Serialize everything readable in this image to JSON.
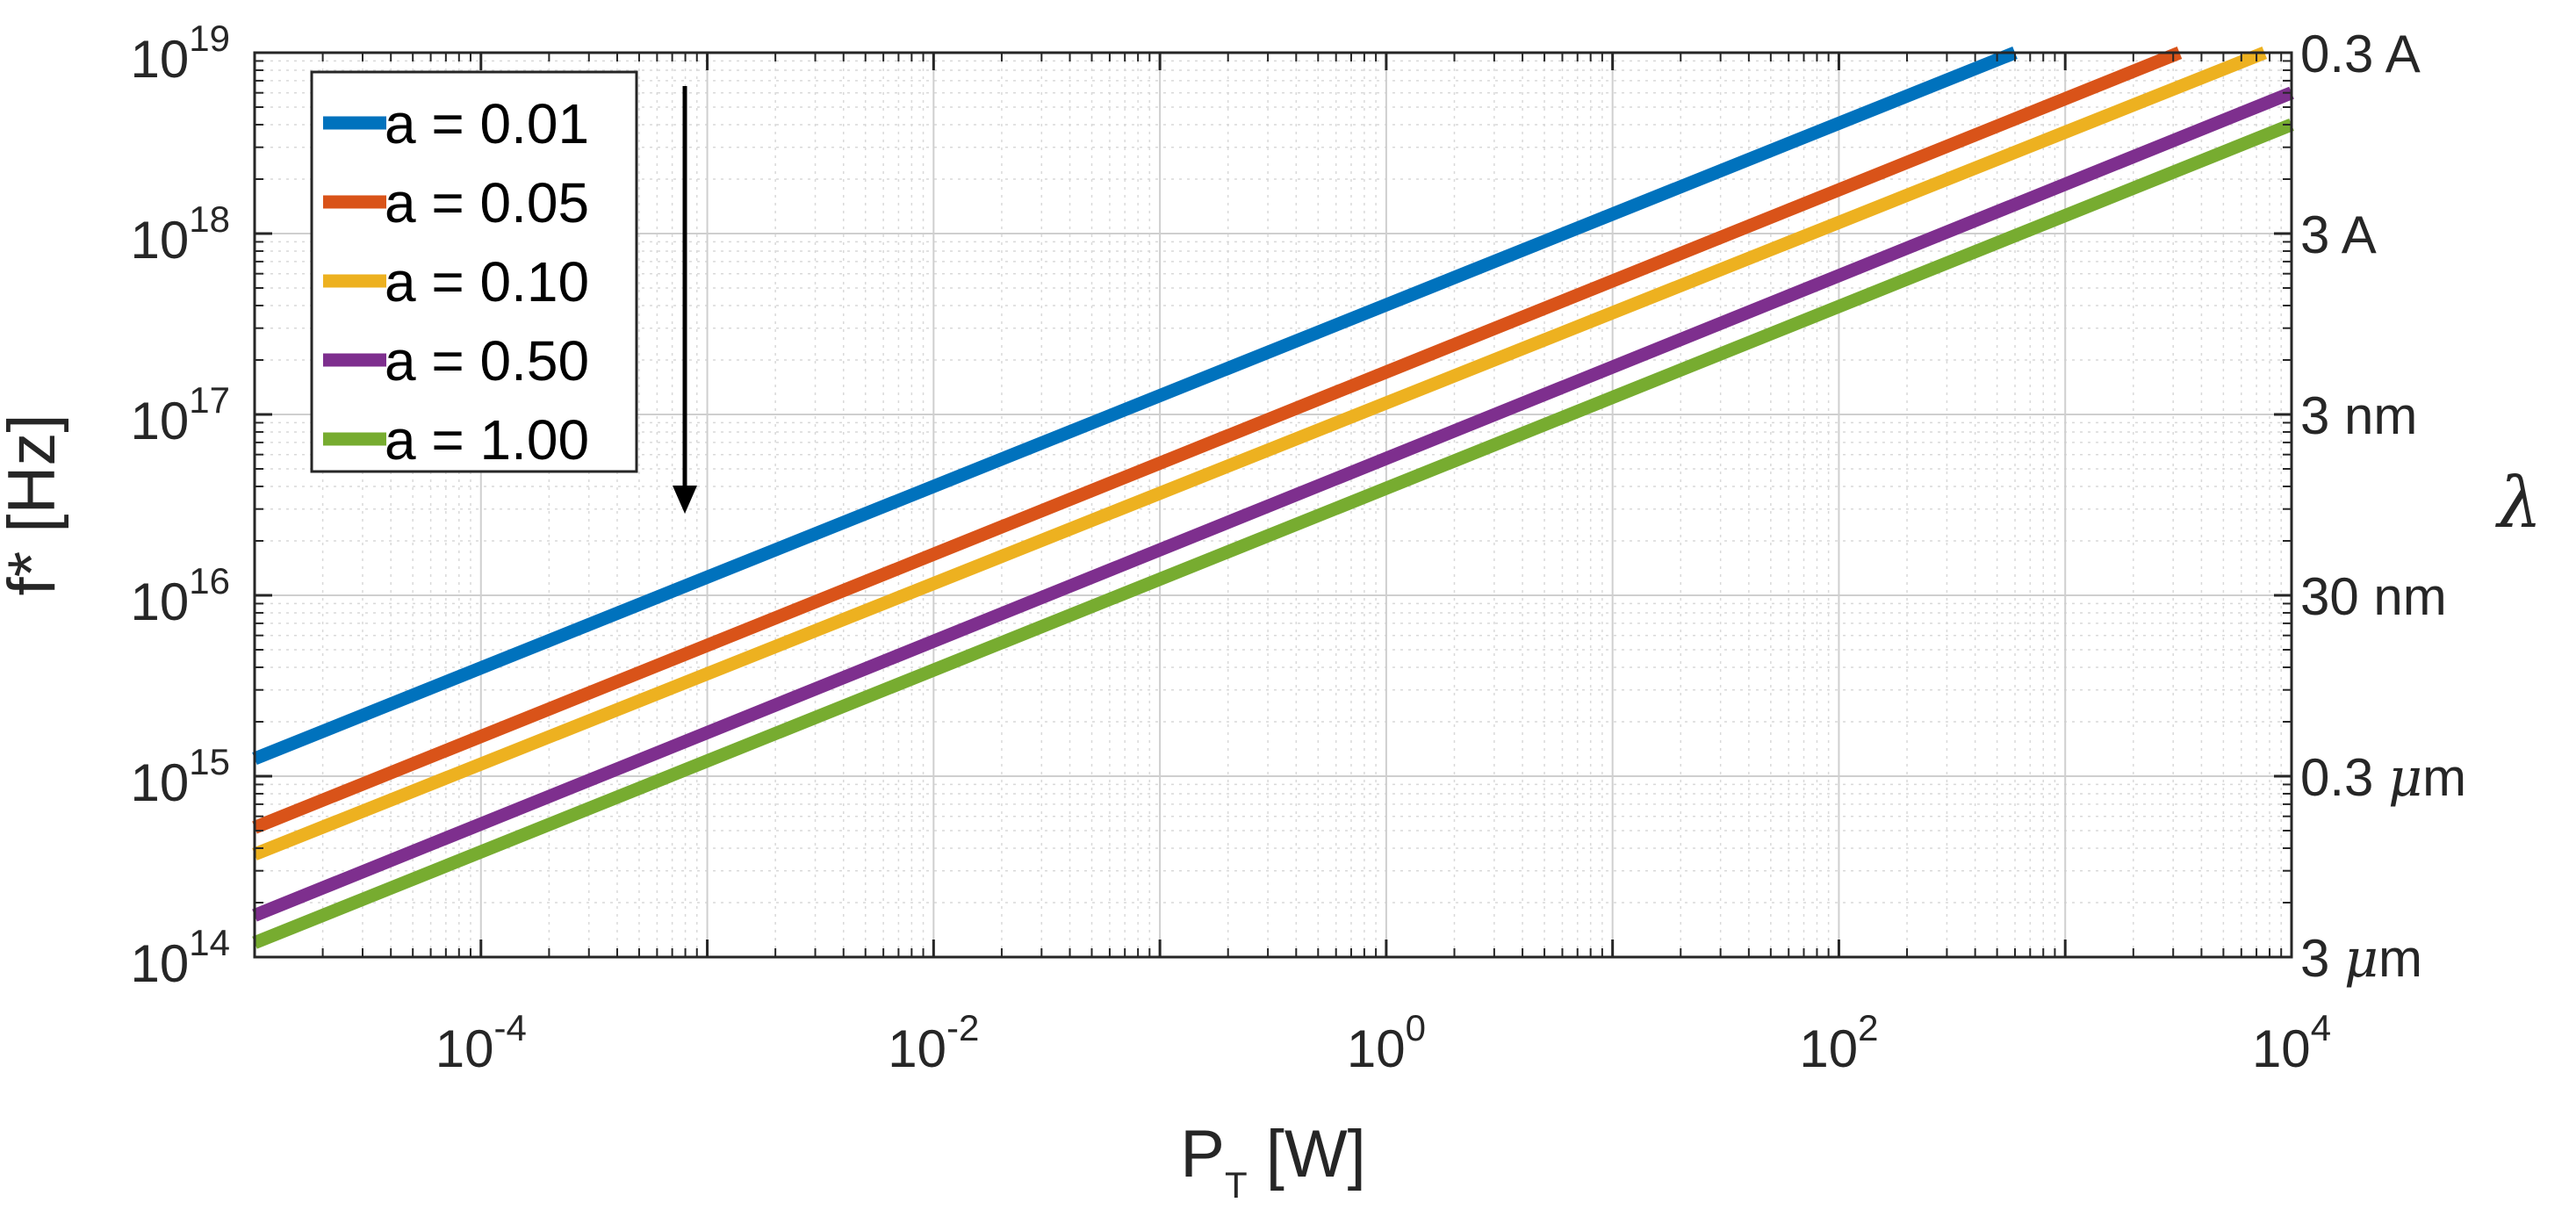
{
  "chart_data": {
    "type": "line",
    "title": "",
    "xlabel": {
      "main": "P",
      "sub": "T",
      "unit": " [W]"
    },
    "ylabel": "f* [Hz]",
    "y2label": "λ",
    "xscale": "log",
    "yscale": "log",
    "xlim": [
      1e-05,
      10000.0
    ],
    "ylim": [
      100000000000000.0,
      1e+19
    ],
    "grid": true,
    "minor_grid": true,
    "x_ticks": [
      {
        "value": 0.0001,
        "base": "10",
        "exp": "-4"
      },
      {
        "value": 0.01,
        "base": "10",
        "exp": "-2"
      },
      {
        "value": 1.0,
        "base": "10",
        "exp": "0"
      },
      {
        "value": 100.0,
        "base": "10",
        "exp": "2"
      },
      {
        "value": 10000.0,
        "base": "10",
        "exp": "4"
      }
    ],
    "y_ticks": [
      {
        "value": 100000000000000.0,
        "base": "10",
        "exp": "14"
      },
      {
        "value": 1000000000000000.0,
        "base": "10",
        "exp": "15"
      },
      {
        "value": 1e+16,
        "base": "10",
        "exp": "16"
      },
      {
        "value": 1e+17,
        "base": "10",
        "exp": "17"
      },
      {
        "value": 1e+18,
        "base": "10",
        "exp": "18"
      },
      {
        "value": 1e+19,
        "base": "10",
        "exp": "19"
      }
    ],
    "right_ticks": [
      {
        "at": 1e+19,
        "label": "0.3 A"
      },
      {
        "at": 1e+18,
        "label": "3 A"
      },
      {
        "at": 1e+17,
        "label": "3 nm"
      },
      {
        "at": 1e+16,
        "label": "30 nm"
      },
      {
        "at": 1000000000000000.0,
        "label": "0.3 μm"
      },
      {
        "at": 100000000000000.0,
        "label": "3 μm"
      }
    ],
    "legend_position": "top-left",
    "annotation": "downward arrow indicating increasing a",
    "series": [
      {
        "name": "a = 0.01",
        "color": "#0072BD",
        "x": [
          1e-05,
          600
        ],
        "y": [
          1250000000000000.0,
          1e+19
        ]
      },
      {
        "name": "a = 0.05",
        "color": "#D95319",
        "x": [
          1e-05,
          3200
        ],
        "y": [
          520000000000000.0,
          1e+19
        ]
      },
      {
        "name": "a = 0.10",
        "color": "#EDB120",
        "x": [
          1e-05,
          7600
        ],
        "y": [
          370000000000000.0,
          1e+19
        ]
      },
      {
        "name": "a = 0.50",
        "color": "#7E2F8E",
        "x": [
          1e-05,
          10000.0
        ],
        "y": [
          170000000000000.0,
          6e+18
        ]
      },
      {
        "name": "a = 1.00",
        "color": "#77AC30",
        "x": [
          1e-05,
          10000.0
        ],
        "y": [
          120000000000000.0,
          4e+18
        ]
      }
    ]
  }
}
